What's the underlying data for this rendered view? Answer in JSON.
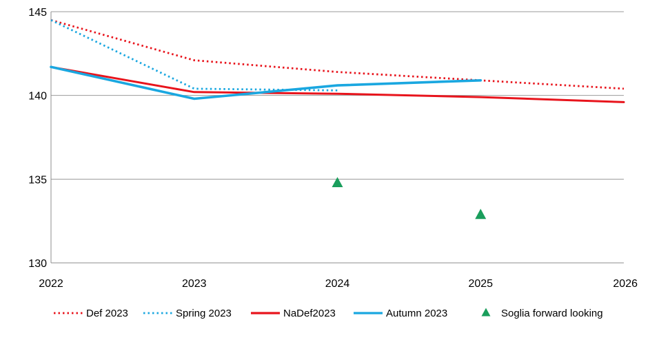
{
  "chart_data": {
    "type": "line",
    "title": "",
    "xlabel": "",
    "ylabel": "",
    "xlim": [
      2022,
      2026
    ],
    "ylim": [
      130,
      145
    ],
    "x_ticks": [
      2022,
      2023,
      2024,
      2025,
      2026
    ],
    "y_ticks": [
      130,
      135,
      140,
      145
    ],
    "grid": "horizontal",
    "legend_position": "bottom",
    "series": [
      {
        "name": "Def 2023",
        "style": "dotted",
        "color": "#e8141c",
        "points": [
          [
            2022,
            144.5
          ],
          [
            2023,
            142.1
          ],
          [
            2024,
            141.4
          ],
          [
            2025,
            140.9
          ],
          [
            2026,
            140.4
          ]
        ]
      },
      {
        "name": "Spring 2023",
        "style": "dotted",
        "color": "#1aa7e0",
        "points": [
          [
            2022,
            144.5
          ],
          [
            2023,
            140.4
          ],
          [
            2024,
            140.3
          ]
        ]
      },
      {
        "name": "NaDef2023",
        "style": "solid",
        "color": "#e8141c",
        "points": [
          [
            2022,
            141.7
          ],
          [
            2023,
            140.2
          ],
          [
            2024,
            140.1
          ],
          [
            2025,
            139.9
          ],
          [
            2026,
            139.6
          ]
        ]
      },
      {
        "name": "Autumn 2023",
        "style": "solid",
        "color": "#1aa7e0",
        "points": [
          [
            2022,
            141.7
          ],
          [
            2023,
            139.8
          ],
          [
            2024,
            140.6
          ],
          [
            2025,
            140.9
          ]
        ]
      },
      {
        "name": "Soglia forward looking",
        "style": "marker",
        "color": "#1a9e5c",
        "points": [
          [
            2024,
            134.8
          ],
          [
            2025,
            132.9
          ]
        ]
      }
    ]
  }
}
